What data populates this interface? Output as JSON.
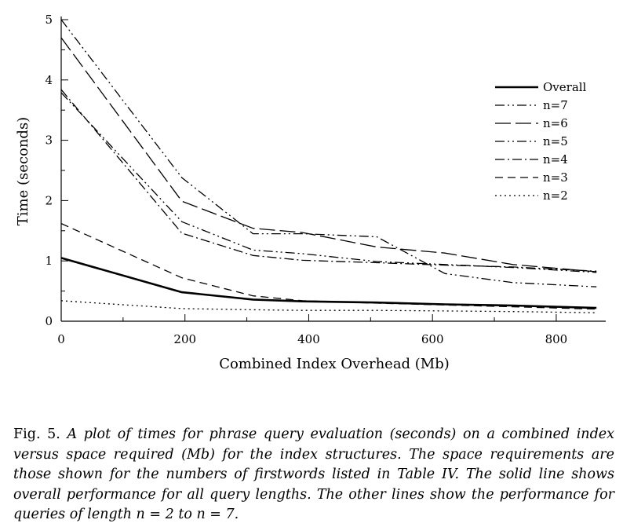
{
  "chart_data": {
    "type": "line",
    "title": "",
    "xlabel": "Combined Index Overhead (Mb)",
    "ylabel": "Time (seconds)",
    "xlim": [
      0,
      880
    ],
    "ylim": [
      0,
      5
    ],
    "xticks": [
      0,
      200,
      400,
      600,
      800
    ],
    "yticks": [
      0,
      1,
      2,
      3,
      4,
      5
    ],
    "grid": false,
    "legend_position": "top-right",
    "series": [
      {
        "name": "Overall",
        "style": "solid-thick",
        "x": [
          0,
          195,
          310,
          390,
          510,
          620,
          730,
          865
        ],
        "y": [
          1.05,
          0.48,
          0.36,
          0.33,
          0.31,
          0.28,
          0.26,
          0.22
        ]
      },
      {
        "name": "n=7",
        "style": "dash-dot-dot",
        "x": [
          0,
          195,
          310,
          390,
          510,
          620,
          730,
          865
        ],
        "y": [
          5.0,
          2.38,
          1.45,
          1.45,
          1.4,
          0.79,
          0.64,
          0.57
        ]
      },
      {
        "name": "n=6",
        "style": "long-dash",
        "x": [
          0,
          195,
          310,
          390,
          510,
          620,
          730,
          865
        ],
        "y": [
          4.7,
          1.99,
          1.54,
          1.47,
          1.23,
          1.13,
          0.94,
          0.82
        ]
      },
      {
        "name": "n=5",
        "style": "dash-dot-dot",
        "x": [
          0,
          195,
          310,
          390,
          510,
          620,
          730,
          865
        ],
        "y": [
          3.79,
          1.65,
          1.18,
          1.12,
          0.99,
          0.94,
          0.89,
          0.81
        ]
      },
      {
        "name": "n=4",
        "style": "dash-dot",
        "x": [
          0,
          195,
          310,
          390,
          510,
          620,
          730,
          865
        ],
        "y": [
          3.84,
          1.46,
          1.09,
          1.01,
          0.97,
          0.93,
          0.9,
          0.83
        ]
      },
      {
        "name": "n=3",
        "style": "dash",
        "x": [
          0,
          195,
          310,
          390,
          510,
          620,
          730,
          865
        ],
        "y": [
          1.62,
          0.72,
          0.42,
          0.34,
          0.3,
          0.27,
          0.24,
          0.2
        ]
      },
      {
        "name": "n=2",
        "style": "dotted",
        "x": [
          0,
          195,
          310,
          390,
          510,
          620,
          730,
          865
        ],
        "y": [
          0.34,
          0.21,
          0.19,
          0.18,
          0.18,
          0.17,
          0.16,
          0.14
        ]
      }
    ]
  },
  "caption": {
    "fig_label": "Fig. 5.",
    "text": "A plot of times for phrase query evaluation (seconds) on a combined index versus space required (Mb) for the index structures. The space requirements are those shown for the numbers of firstwords listed in Table IV. The solid line shows overall performance for all query lengths. The other lines show the performance for queries of length n = 2 to n = 7."
  }
}
